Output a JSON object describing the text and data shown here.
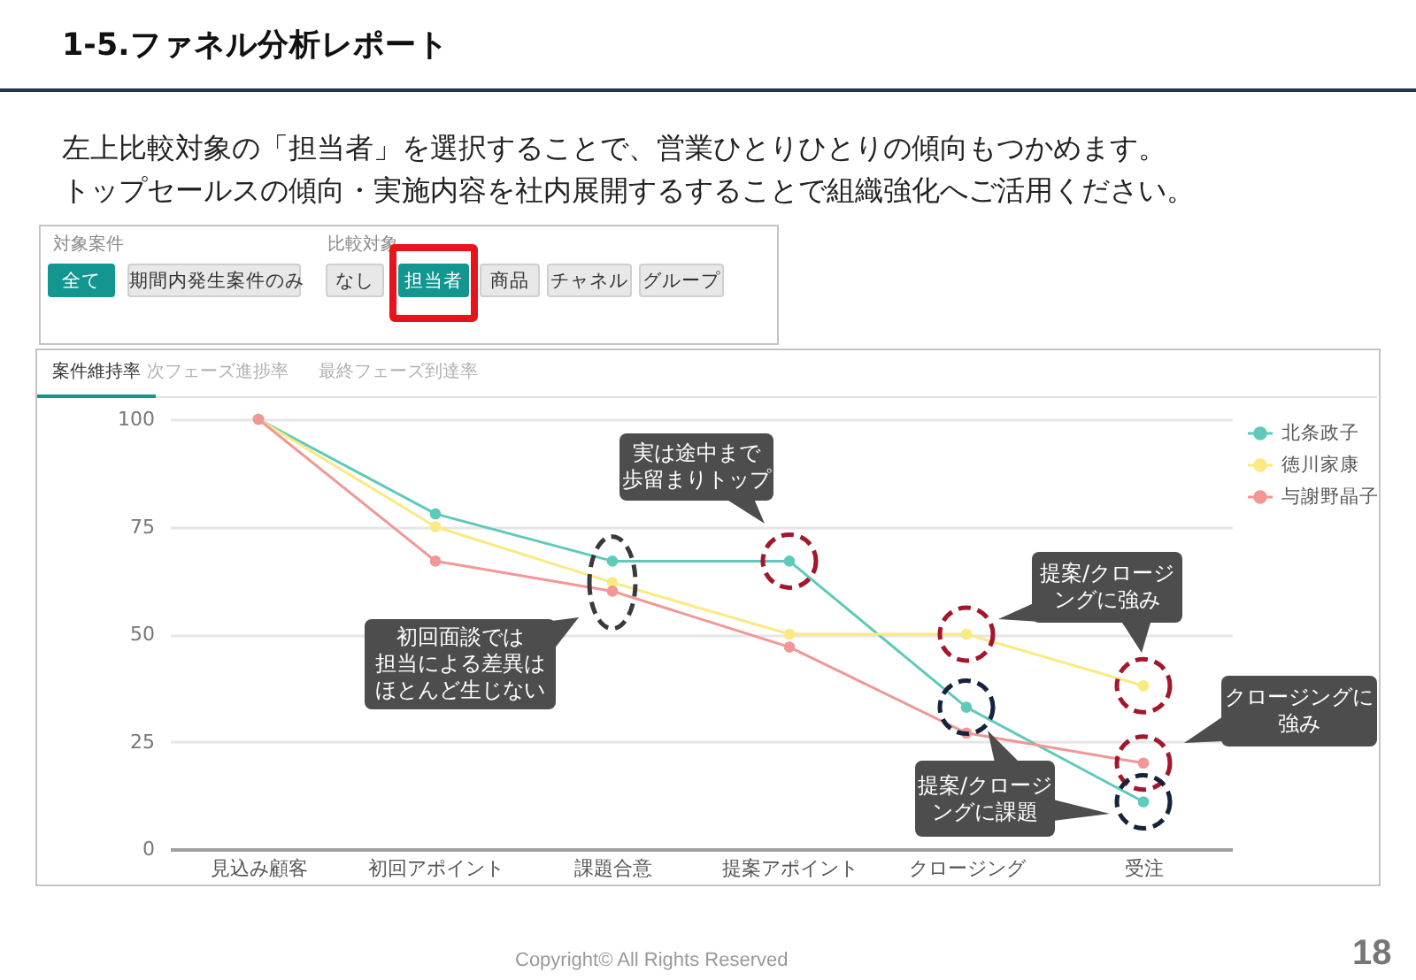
{
  "chart_data": {
    "type": "line",
    "title": "1-5.ファネル分析レポート",
    "subtitle": "左上比較対象の「担当者」を選択することで、営業ひとりひとりの傾向もつかめます。トップセールスの傾向・実施内容を社内展開するすることで組織強化へご活用ください。",
    "categories": [
      "見込み顧客",
      "初回アポイント",
      "課題合意",
      "提案アポイント",
      "クロージング",
      "受注"
    ],
    "series": [
      {
        "name": "北条政子",
        "color": "#5fc9ba",
        "values": [
          100,
          78,
          67,
          67,
          33,
          11
        ]
      },
      {
        "name": "徳川家康",
        "color": "#fbe982",
        "values": [
          100,
          75,
          62,
          50,
          50,
          38
        ]
      },
      {
        "name": "与謝野晶子",
        "color": "#f29696",
        "values": [
          100,
          67,
          60,
          47,
          27,
          20
        ]
      }
    ],
    "ylim": [
      0,
      100
    ],
    "yticks": [
      0,
      25,
      50,
      75,
      100
    ],
    "grid": "y",
    "legend": "top right",
    "marker": "circle",
    "annotations": [
      "初回面談では担当による差異はほとんど生じない",
      "実は途中まで歩留まりトップ",
      "提案/クロージングに強み",
      "クロージングに強み",
      "提案/クロージングに課題",
      "対象案件",
      "全て",
      "期間内発生案件のみ",
      "比較対象",
      "なし",
      "担当者",
      "商品",
      "チャネル",
      "グループ",
      "案件維持率",
      "次フェーズ進捗率",
      "最終フェーズ到達率",
      "Copyright© All Rights Reserved",
      "18"
    ]
  }
}
